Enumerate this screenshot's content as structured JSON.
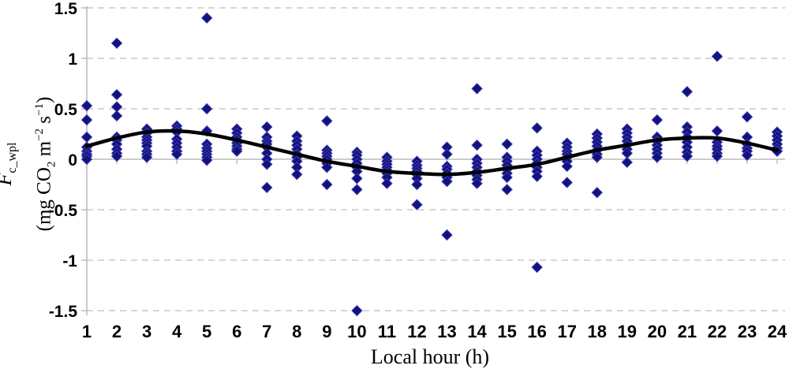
{
  "chart_data": {
    "type": "scatter",
    "title": "",
    "xlabel": "Local hour (h)",
    "ylabel": {
      "symbol": "F",
      "symbol_sub": "c_wpl",
      "units": {
        "p1": "(mg CO",
        "sub1": "2",
        "p2": " m",
        "sup1": "−2",
        "p3": " s",
        "sup2": "−1",
        "p4": ")"
      }
    },
    "xlim": [
      1,
      24
    ],
    "ylim": [
      -1.5,
      1.5
    ],
    "x_ticks": [
      1,
      2,
      3,
      4,
      5,
      6,
      7,
      8,
      9,
      10,
      11,
      12,
      13,
      14,
      15,
      16,
      17,
      18,
      19,
      20,
      21,
      22,
      23,
      24
    ],
    "y_ticks": [
      {
        "label": "1.5",
        "value": 1.5
      },
      {
        "label": "1",
        "value": 1
      },
      {
        "label": "0.5",
        "value": 0.5
      },
      {
        "label": "0",
        "value": 0
      },
      {
        "label": "-0.5",
        "value": -0.5
      },
      {
        "label": "-1",
        "value": -1
      },
      {
        "label": "-1.5",
        "value": -1.5
      }
    ],
    "grid": {
      "style": "dashed-horizontal",
      "color": "#c9c9c9"
    },
    "axis_color": "#bcbcbc",
    "marker": {
      "shape": "diamond",
      "color": "#12127e",
      "edge": "#3c3cae",
      "size": 13
    },
    "trend_line": {
      "color": "#000000",
      "width": 4.5
    },
    "scatter": [
      {
        "hour": 1,
        "values": [
          0.53,
          0.39,
          0.22,
          0.12,
          0.08,
          0.05,
          0.03,
          0.0
        ]
      },
      {
        "hour": 2,
        "values": [
          1.15,
          0.64,
          0.52,
          0.43,
          0.22,
          0.19,
          0.15,
          0.1,
          0.06,
          0.03
        ]
      },
      {
        "hour": 3,
        "values": [
          0.3,
          0.26,
          0.22,
          0.19,
          0.16,
          0.13,
          0.08,
          0.05,
          0.02
        ]
      },
      {
        "hour": 4,
        "values": [
          0.33,
          0.3,
          0.27,
          0.2,
          0.16,
          0.12,
          0.08,
          0.05
        ]
      },
      {
        "hour": 5,
        "values": [
          1.4,
          0.5,
          0.28,
          0.15,
          0.11,
          0.08,
          0.05,
          0.02,
          -0.01
        ]
      },
      {
        "hour": 6,
        "values": [
          0.3,
          0.26,
          0.22,
          0.19,
          0.16,
          0.13,
          0.1,
          0.08
        ]
      },
      {
        "hour": 7,
        "values": [
          0.32,
          0.22,
          0.18,
          0.15,
          0.12,
          0.06,
          0.0,
          -0.05,
          -0.28
        ]
      },
      {
        "hour": 8,
        "values": [
          0.23,
          0.18,
          0.14,
          0.1,
          0.05,
          0.02,
          -0.02,
          -0.08,
          -0.15
        ]
      },
      {
        "hour": 9,
        "values": [
          0.38,
          0.09,
          0.06,
          0.03,
          0.0,
          -0.04,
          -0.08,
          -0.25
        ]
      },
      {
        "hour": 10,
        "values": [
          0.07,
          0.04,
          0.0,
          -0.04,
          -0.08,
          -0.12,
          -0.19,
          -0.3,
          -1.5
        ]
      },
      {
        "hour": 11,
        "values": [
          0.02,
          -0.02,
          -0.05,
          -0.08,
          -0.11,
          -0.14,
          -0.18,
          -0.24
        ]
      },
      {
        "hour": 12,
        "values": [
          -0.02,
          -0.06,
          -0.09,
          -0.12,
          -0.15,
          -0.19,
          -0.25,
          -0.45
        ]
      },
      {
        "hour": 13,
        "values": [
          0.12,
          0.05,
          -0.07,
          -0.1,
          -0.14,
          -0.18,
          -0.22,
          -0.75
        ]
      },
      {
        "hour": 14,
        "values": [
          0.7,
          0.14,
          0.0,
          -0.04,
          -0.08,
          -0.12,
          -0.16,
          -0.2,
          -0.24
        ]
      },
      {
        "hour": 15,
        "values": [
          0.15,
          0.02,
          -0.02,
          -0.06,
          -0.1,
          -0.14,
          -0.18,
          -0.3
        ]
      },
      {
        "hour": 16,
        "values": [
          0.31,
          0.08,
          0.04,
          0.0,
          -0.04,
          -0.08,
          -0.12,
          -0.17,
          -1.07
        ]
      },
      {
        "hour": 17,
        "values": [
          0.16,
          0.12,
          0.08,
          0.05,
          0.02,
          -0.02,
          -0.07,
          -0.23
        ]
      },
      {
        "hour": 18,
        "values": [
          0.25,
          0.21,
          0.17,
          0.13,
          0.09,
          0.05,
          0.02,
          -0.33
        ]
      },
      {
        "hour": 19,
        "values": [
          0.3,
          0.26,
          0.22,
          0.18,
          0.14,
          0.1,
          0.06,
          -0.03
        ]
      },
      {
        "hour": 20,
        "values": [
          0.39,
          0.22,
          0.18,
          0.14,
          0.1,
          0.06,
          0.02
        ]
      },
      {
        "hour": 21,
        "values": [
          0.67,
          0.32,
          0.27,
          0.22,
          0.17,
          0.12,
          0.07,
          0.03
        ]
      },
      {
        "hour": 22,
        "values": [
          1.02,
          0.28,
          0.17,
          0.13,
          0.1,
          0.06,
          0.03
        ]
      },
      {
        "hour": 23,
        "values": [
          0.42,
          0.22,
          0.15,
          0.11,
          0.08,
          0.04
        ]
      },
      {
        "hour": 24,
        "values": [
          0.27,
          0.23,
          0.19,
          0.15,
          0.11,
          0.08
        ]
      }
    ],
    "trend": [
      0.13,
      0.21,
      0.27,
      0.28,
      0.25,
      0.19,
      0.12,
      0.05,
      -0.02,
      -0.07,
      -0.12,
      -0.14,
      -0.15,
      -0.13,
      -0.09,
      -0.05,
      0.02,
      0.09,
      0.14,
      0.19,
      0.21,
      0.21,
      0.16,
      0.09
    ]
  }
}
